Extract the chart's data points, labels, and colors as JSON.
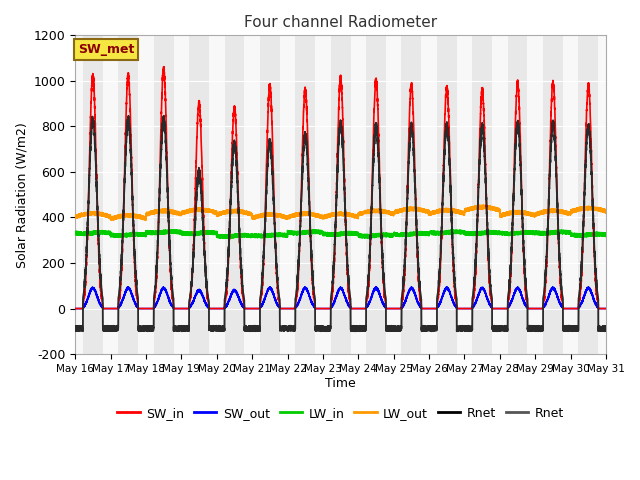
{
  "title": "Four channel Radiometer",
  "xlabel": "Time",
  "ylabel": "Solar Radiation (W/m2)",
  "ylim": [
    -200,
    1200
  ],
  "background_color": "#ffffff",
  "plot_bg_color": "#f0f0f0",
  "annotation_text": "SW_met",
  "annotation_bg": "#f5e642",
  "annotation_border": "#8b6914",
  "annotation_text_color": "#8b0000",
  "xtick_labels": [
    "May 16",
    "May 17",
    "May 18",
    "May 19",
    "May 20",
    "May 21",
    "May 22",
    "May 23",
    "May 24",
    "May 25",
    "May 26",
    "May 27",
    "May 28",
    "May 29",
    "May 30",
    "May 31"
  ],
  "ytick_labels": [
    -200,
    0,
    200,
    400,
    600,
    800,
    1000,
    1200
  ],
  "series": {
    "SW_in": {
      "color": "#ff0000",
      "lw": 1.2
    },
    "SW_out": {
      "color": "#0000ff",
      "lw": 1.2
    },
    "LW_in": {
      "color": "#00cc00",
      "lw": 1.2
    },
    "LW_out": {
      "color": "#ff9900",
      "lw": 1.2
    },
    "Rnet": {
      "color": "#000000",
      "lw": 1.2
    },
    "Rnet2": {
      "color": "#555555",
      "lw": 1.2
    }
  },
  "legend_entries": [
    {
      "label": "SW_in",
      "color": "#ff0000"
    },
    {
      "label": "SW_out",
      "color": "#0000ff"
    },
    {
      "label": "LW_in",
      "color": "#00cc00"
    },
    {
      "label": "LW_out",
      "color": "#ff9900"
    },
    {
      "label": "Rnet",
      "color": "#000000"
    },
    {
      "label": "Rnet",
      "color": "#555555"
    }
  ],
  "n_days": 15,
  "pts_per_day": 500,
  "SW_in_peaks": [
    1020,
    1020,
    1050,
    900,
    880,
    980,
    960,
    1010,
    1005,
    980,
    970,
    960,
    990,
    990,
    980
  ],
  "Rnet_peaks": [
    830,
    830,
    830,
    600,
    720,
    730,
    760,
    810,
    800,
    800,
    800,
    800,
    810,
    810,
    800
  ],
  "SW_out_peaks": [
    90,
    90,
    90,
    80,
    80,
    90,
    90,
    90,
    90,
    90,
    90,
    90,
    90,
    90,
    90
  ],
  "LW_in_base": 330,
  "LW_out_base": 400,
  "day_start": 0.22,
  "day_end": 0.78,
  "night_rnet": -80,
  "grid_color": "#d8d8d8",
  "band_day_color": "#e8e8e8",
  "band_night_color": "#f8f8f8"
}
